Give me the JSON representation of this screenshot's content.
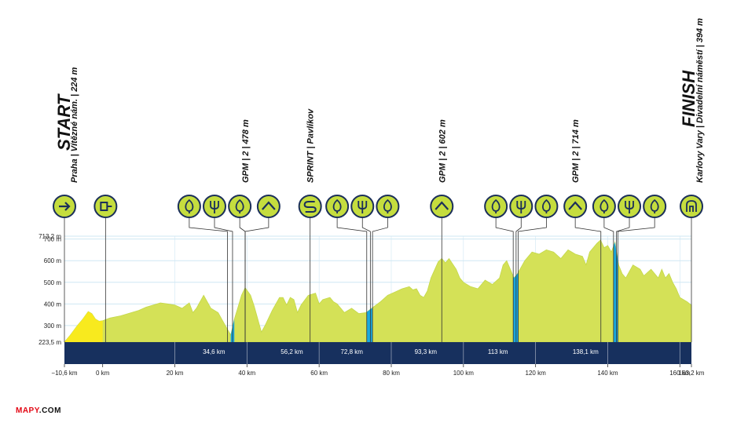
{
  "chart_data": {
    "type": "area",
    "x_unit": "km",
    "y_unit": "m",
    "xlim": [
      -10.6,
      163.2
    ],
    "ylim": [
      223.5,
      713.2
    ],
    "y_ticks": [
      {
        "value": 223.5,
        "label": "223,5 m"
      },
      {
        "value": 300,
        "label": "300 m"
      },
      {
        "value": 400,
        "label": "400 m"
      },
      {
        "value": 500,
        "label": "500 m"
      },
      {
        "value": 600,
        "label": "600 m"
      },
      {
        "value": 700,
        "label": "700 m"
      },
      {
        "value": 713.2,
        "label": "713,2 m"
      }
    ],
    "x_ticks": [
      {
        "value": -10.6,
        "label": "−10,6 km"
      },
      {
        "value": 0,
        "label": "0 km"
      },
      {
        "value": 20,
        "label": "20 km"
      },
      {
        "value": 40,
        "label": "40 km"
      },
      {
        "value": 60,
        "label": "60 km"
      },
      {
        "value": 80,
        "label": "80 km"
      },
      {
        "value": 100,
        "label": "100 km"
      },
      {
        "value": 120,
        "label": "120 km"
      },
      {
        "value": 140,
        "label": "140 km"
      },
      {
        "value": 160,
        "label": "160 km"
      },
      {
        "value": 163.2,
        "label": "163,2 km"
      }
    ],
    "profile": [
      [
        -10.6,
        224
      ],
      [
        -9,
        255
      ],
      [
        -7,
        300
      ],
      [
        -5.5,
        330
      ],
      [
        -4,
        365
      ],
      [
        -3,
        355
      ],
      [
        -2,
        330
      ],
      [
        -1,
        320
      ],
      [
        0,
        322
      ],
      [
        2,
        335
      ],
      [
        5,
        345
      ],
      [
        8,
        360
      ],
      [
        10,
        370
      ],
      [
        12,
        385
      ],
      [
        14,
        395
      ],
      [
        16,
        405
      ],
      [
        18,
        400
      ],
      [
        20,
        395
      ],
      [
        22,
        380
      ],
      [
        24,
        405
      ],
      [
        25,
        360
      ],
      [
        26,
        380
      ],
      [
        28,
        440
      ],
      [
        30,
        380
      ],
      [
        32,
        360
      ],
      [
        34,
        300
      ],
      [
        35.5,
        256
      ],
      [
        36.5,
        330
      ],
      [
        37.5,
        385
      ],
      [
        38.5,
        440
      ],
      [
        39.5,
        475
      ],
      [
        41,
        440
      ],
      [
        42,
        390
      ],
      [
        43,
        330
      ],
      [
        44,
        270
      ],
      [
        45,
        300
      ],
      [
        47,
        370
      ],
      [
        49,
        430
      ],
      [
        50,
        430
      ],
      [
        51,
        395
      ],
      [
        52,
        430
      ],
      [
        53,
        420
      ],
      [
        54,
        360
      ],
      [
        55,
        395
      ],
      [
        57,
        440
      ],
      [
        59,
        450
      ],
      [
        60,
        400
      ],
      [
        61,
        420
      ],
      [
        63,
        430
      ],
      [
        64,
        410
      ],
      [
        65,
        400
      ],
      [
        67,
        360
      ],
      [
        69,
        380
      ],
      [
        71,
        355
      ],
      [
        73,
        360
      ],
      [
        75,
        385
      ],
      [
        77,
        410
      ],
      [
        79,
        440
      ],
      [
        81,
        455
      ],
      [
        83,
        470
      ],
      [
        85,
        480
      ],
      [
        86,
        465
      ],
      [
        87,
        470
      ],
      [
        88,
        440
      ],
      [
        89,
        430
      ],
      [
        90,
        460
      ],
      [
        91,
        520
      ],
      [
        93,
        595
      ],
      [
        94,
        610
      ],
      [
        95,
        590
      ],
      [
        96,
        610
      ],
      [
        98,
        560
      ],
      [
        99,
        520
      ],
      [
        100,
        500
      ],
      [
        102,
        480
      ],
      [
        104,
        470
      ],
      [
        106,
        510
      ],
      [
        108,
        490
      ],
      [
        110,
        520
      ],
      [
        111,
        580
      ],
      [
        112,
        600
      ],
      [
        113,
        560
      ],
      [
        114,
        520
      ],
      [
        115,
        540
      ],
      [
        117,
        600
      ],
      [
        119,
        640
      ],
      [
        121,
        630
      ],
      [
        123,
        650
      ],
      [
        125,
        640
      ],
      [
        127,
        610
      ],
      [
        129,
        650
      ],
      [
        131,
        630
      ],
      [
        133,
        620
      ],
      [
        134,
        580
      ],
      [
        135,
        640
      ],
      [
        137,
        680
      ],
      [
        138,
        695
      ],
      [
        139,
        660
      ],
      [
        140,
        670
      ],
      [
        141,
        640
      ],
      [
        142,
        685
      ],
      [
        143,
        580
      ],
      [
        144,
        540
      ],
      [
        145,
        520
      ],
      [
        147,
        580
      ],
      [
        149,
        560
      ],
      [
        150,
        530
      ],
      [
        152,
        560
      ],
      [
        154,
        520
      ],
      [
        155,
        560
      ],
      [
        156,
        520
      ],
      [
        157,
        540
      ],
      [
        158,
        500
      ],
      [
        159,
        470
      ],
      [
        160,
        430
      ],
      [
        161,
        420
      ],
      [
        162,
        410
      ],
      [
        163.2,
        394
      ]
    ],
    "climb_segments": [
      [
        35.5,
        36.5
      ],
      [
        73.2,
        74.8
      ],
      [
        113.8,
        115.2
      ],
      [
        141.6,
        142.8
      ]
    ],
    "segment_dividers": [
      20,
      40,
      60,
      80,
      100,
      120,
      140,
      160
    ],
    "segment_km_labels": [
      "34,6 km",
      "56,2 km",
      "72,8 km",
      "93,3 km",
      "113 km",
      "138,1 km"
    ],
    "segment_km_positions": [
      34.6,
      56.2,
      72.8,
      93.3,
      113,
      138.1
    ],
    "start": {
      "label": "START",
      "sub": "Praha | Vítězné nám. | 224 m"
    },
    "finish": {
      "label": "FINISH",
      "sub": "Karlovy Vary | Divadelní náměstí | 394 m"
    },
    "annotations": [
      {
        "text": "GPM | 2 | 478 m",
        "km": 39.5
      },
      {
        "text": "SPRINT | Pavlíkov",
        "km": 57.5
      },
      {
        "text": "GPM | 2 | 602 m",
        "km": 94
      },
      {
        "text": "GPM | 2 | 714 m",
        "km": 131
      }
    ],
    "markers": [
      {
        "icon": "arrow-right-icon",
        "km": -10.6,
        "line_km": -10.6
      },
      {
        "icon": "start-flag-icon",
        "km": 0.8,
        "line_km": 0.8
      },
      {
        "icon": "feed-zone-icon",
        "km": 24,
        "line_km": 34.6
      },
      {
        "icon": "sprint-fork-icon",
        "km": 31,
        "line_km": 36.0
      },
      {
        "icon": "feed-zone-icon",
        "km": 38,
        "line_km": 39.5
      },
      {
        "icon": "climb-peak-icon",
        "km": 46,
        "line_km": 39.5
      },
      {
        "icon": "sprint-s-icon",
        "km": 57.5,
        "line_km": 57.5
      },
      {
        "icon": "feed-zone-icon",
        "km": 65,
        "line_km": 73.2
      },
      {
        "icon": "sprint-fork-icon",
        "km": 72,
        "line_km": 74.2
      },
      {
        "icon": "feed-zone-icon",
        "km": 79,
        "line_km": 74.8
      },
      {
        "icon": "climb-peak-icon",
        "km": 94,
        "line_km": 94
      },
      {
        "icon": "feed-zone-icon",
        "km": 109,
        "line_km": 113.8
      },
      {
        "icon": "sprint-fork-icon",
        "km": 116,
        "line_km": 114.6
      },
      {
        "icon": "feed-zone-icon",
        "km": 123,
        "line_km": 115.2
      },
      {
        "icon": "climb-peak-icon",
        "km": 131,
        "line_km": 138.1
      },
      {
        "icon": "feed-zone-icon",
        "km": 139,
        "line_km": 141.6
      },
      {
        "icon": "sprint-fork-icon",
        "km": 146,
        "line_km": 142.4
      },
      {
        "icon": "feed-zone-icon",
        "km": 153,
        "line_km": 142.8
      },
      {
        "icon": "finish-icon",
        "km": 163.2,
        "line_km": 163.2
      }
    ]
  },
  "colors": {
    "profile_fill": "#d4e157",
    "profile_ridge": "#c3d84a",
    "neutral_fill": "#f8ea1e",
    "climb_fill": "#1aa9df",
    "band": "#17305e",
    "grid": "#cfe7f3",
    "marker_fill": "#c5dd3e",
    "marker_stroke": "#1b2f5a"
  },
  "logo": {
    "mark": "MAPY",
    "rest": ".COM"
  }
}
